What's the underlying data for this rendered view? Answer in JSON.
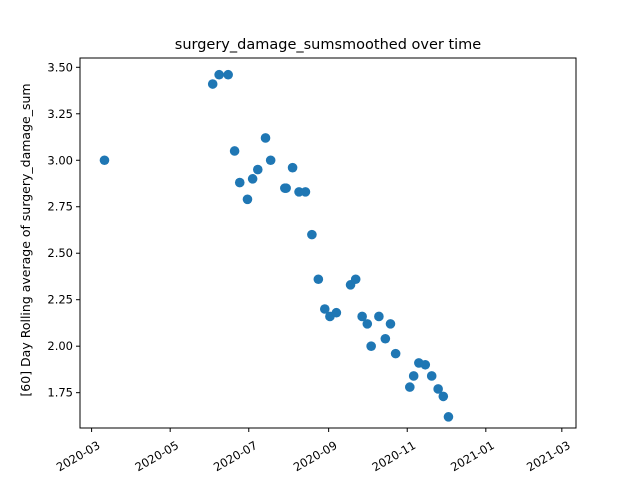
{
  "chart_data": {
    "type": "scatter",
    "title": "surgery_damage_sumsmoothed over time",
    "xlabel": "",
    "ylabel": "[60] Day Rolling average of surgery_damage_sum",
    "marker_color": "#1f77b4",
    "grid": false,
    "legend": "none",
    "xlim": [
      "2020-02-21",
      "2021-03-12"
    ],
    "ylim": [
      1.56,
      3.55
    ],
    "x_ticks": [
      "2020-03",
      "2020-05",
      "2020-07",
      "2020-09",
      "2020-11",
      "2021-01",
      "2021-03"
    ],
    "y_ticks": [
      "1.75",
      "2.00",
      "2.25",
      "2.50",
      "2.75",
      "3.00",
      "3.25",
      "3.50"
    ],
    "points": [
      {
        "x": "2020-03-11",
        "y": 3.0
      },
      {
        "x": "2020-06-03",
        "y": 3.41
      },
      {
        "x": "2020-06-08",
        "y": 3.46
      },
      {
        "x": "2020-06-15",
        "y": 3.46
      },
      {
        "x": "2020-06-20",
        "y": 3.05
      },
      {
        "x": "2020-06-24",
        "y": 2.88
      },
      {
        "x": "2020-06-30",
        "y": 2.79
      },
      {
        "x": "2020-07-04",
        "y": 2.9
      },
      {
        "x": "2020-07-08",
        "y": 2.95
      },
      {
        "x": "2020-07-14",
        "y": 3.12
      },
      {
        "x": "2020-07-18",
        "y": 3.0
      },
      {
        "x": "2020-07-29",
        "y": 2.85
      },
      {
        "x": "2020-07-30",
        "y": 2.85
      },
      {
        "x": "2020-08-04",
        "y": 2.96
      },
      {
        "x": "2020-08-09",
        "y": 2.83
      },
      {
        "x": "2020-08-14",
        "y": 2.83
      },
      {
        "x": "2020-08-19",
        "y": 2.6
      },
      {
        "x": "2020-08-24",
        "y": 2.36
      },
      {
        "x": "2020-08-29",
        "y": 2.2
      },
      {
        "x": "2020-09-02",
        "y": 2.16
      },
      {
        "x": "2020-09-07",
        "y": 2.18
      },
      {
        "x": "2020-09-18",
        "y": 2.33
      },
      {
        "x": "2020-09-22",
        "y": 2.36
      },
      {
        "x": "2020-09-27",
        "y": 2.16
      },
      {
        "x": "2020-10-01",
        "y": 2.12
      },
      {
        "x": "2020-10-04",
        "y": 2.0
      },
      {
        "x": "2020-10-10",
        "y": 2.16
      },
      {
        "x": "2020-10-15",
        "y": 2.04
      },
      {
        "x": "2020-10-19",
        "y": 2.12
      },
      {
        "x": "2020-10-23",
        "y": 1.96
      },
      {
        "x": "2020-11-03",
        "y": 1.78
      },
      {
        "x": "2020-11-06",
        "y": 1.84
      },
      {
        "x": "2020-11-10",
        "y": 1.91
      },
      {
        "x": "2020-11-15",
        "y": 1.9
      },
      {
        "x": "2020-11-20",
        "y": 1.84
      },
      {
        "x": "2020-11-25",
        "y": 1.77
      },
      {
        "x": "2020-11-29",
        "y": 1.73
      },
      {
        "x": "2020-12-03",
        "y": 1.62
      }
    ]
  }
}
